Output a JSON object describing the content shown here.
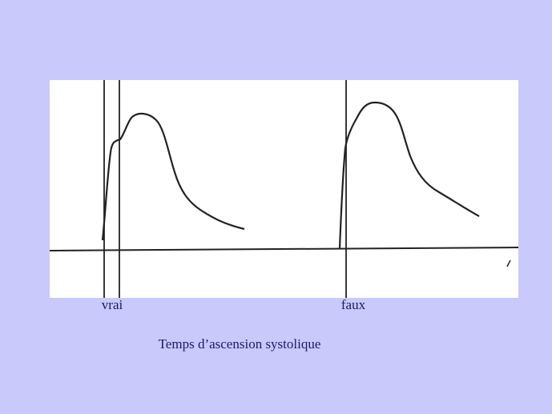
{
  "figure": {
    "labels": {
      "left": "vrai",
      "right": "faux"
    },
    "caption": "Temps d’ascension systolique"
  }
}
